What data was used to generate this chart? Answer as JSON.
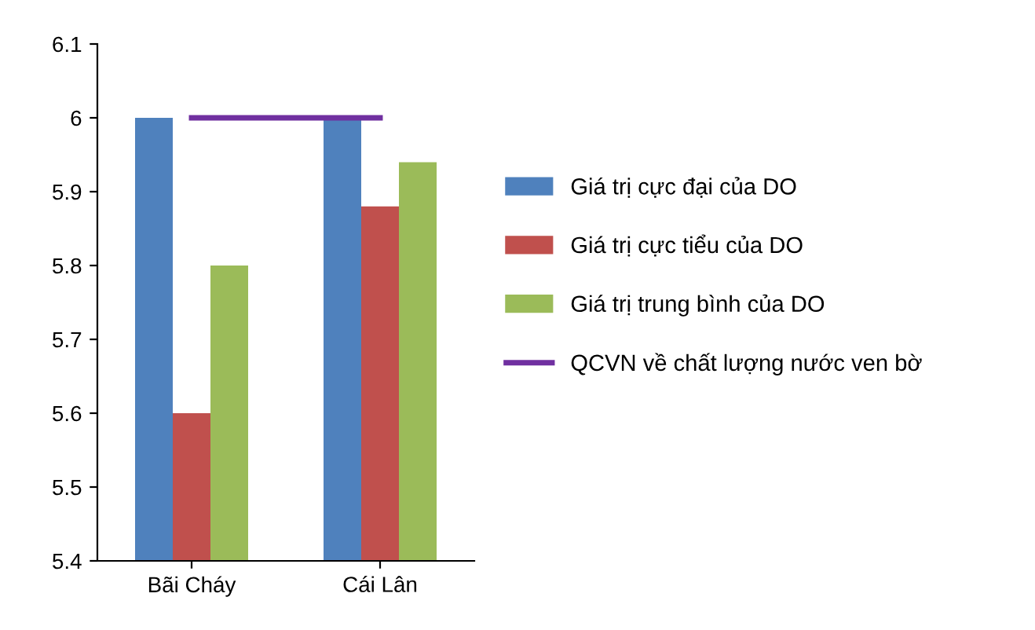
{
  "chart_data": {
    "type": "bar",
    "categories": [
      "Bãi Cháy",
      "Cái Lân"
    ],
    "series": [
      {
        "name": "Giá trị cực đại của DO",
        "color": "#4f81bd",
        "values": [
          6.0,
          6.0
        ]
      },
      {
        "name": "Giá trị cực tiểu của DO",
        "color": "#c0504d",
        "values": [
          5.6,
          5.88
        ]
      },
      {
        "name": "Giá trị trung bình của DO",
        "color": "#9bbb59",
        "values": [
          5.8,
          5.94
        ]
      },
      {
        "name": "QCVN về chất lượng nước ven bờ",
        "color": "#7030a0",
        "type": "line",
        "values": [
          6.0,
          6.0
        ]
      }
    ],
    "ylim": [
      5.4,
      6.1
    ],
    "yticks": [
      5.4,
      5.5,
      5.6,
      5.7,
      5.8,
      5.9,
      {
        "value": 6.0,
        "label": "6"
      },
      6.1
    ],
    "grid": false,
    "legend": "right",
    "marker": "none"
  }
}
